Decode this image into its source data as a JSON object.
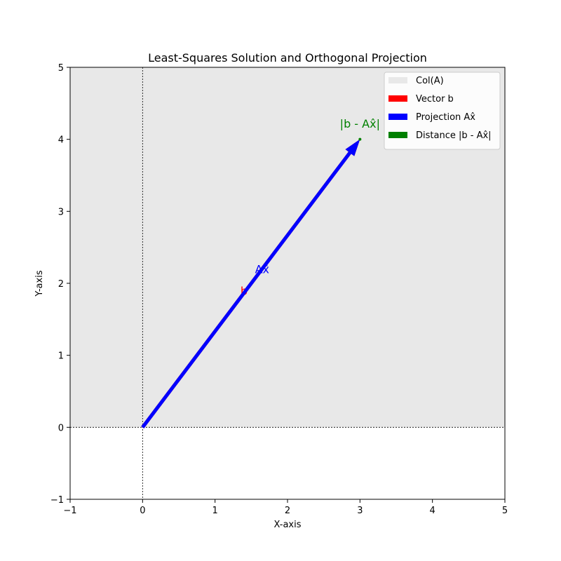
{
  "chart_data": {
    "type": "vector",
    "title": "Least-Squares Solution and Orthogonal Projection",
    "xlabel": "X-axis",
    "ylabel": "Y-axis",
    "xlim": [
      -1,
      5
    ],
    "ylim": [
      -1,
      5
    ],
    "xticks": [
      -1,
      0,
      1,
      2,
      3,
      4,
      5
    ],
    "yticks": [
      -1,
      0,
      1,
      2,
      3,
      4,
      5
    ],
    "xtick_labels": [
      "−1",
      "0",
      "1",
      "2",
      "3",
      "4",
      "5"
    ],
    "ytick_labels": [
      "−1",
      "0",
      "1",
      "2",
      "3",
      "4",
      "5"
    ],
    "reference_lines": {
      "x": 0,
      "y": 0
    },
    "col_a_region": {
      "x": [
        -1,
        5
      ],
      "y": [
        0,
        5
      ],
      "color": "#e8e8e8"
    },
    "vectors": [
      {
        "name": "Vector b",
        "start": [
          0,
          0
        ],
        "end": [
          3,
          4
        ],
        "color": "#ff0000",
        "label": "b",
        "label_pos": [
          1.4,
          1.9
        ]
      },
      {
        "name": "Projection Ax̂",
        "start": [
          0,
          0
        ],
        "end": [
          3,
          4
        ],
        "color": "#0000ff",
        "label": "Ax̂",
        "label_pos": [
          1.65,
          2.2
        ]
      }
    ],
    "distance": {
      "name": "Distance |b - Ax̂|",
      "point": [
        3,
        4
      ],
      "color": "#008000",
      "label": "|b - Ax̂|",
      "label_pos": [
        3.0,
        4.2
      ]
    },
    "legend": {
      "position": "top-right",
      "entries": [
        {
          "label": "Col(A)",
          "color": "#e8e8e8"
        },
        {
          "label": "Vector b",
          "color": "#ff0000"
        },
        {
          "label": "Projection Ax̂",
          "color": "#0000ff"
        },
        {
          "label": "Distance |b - Ax̂|",
          "color": "#008000"
        }
      ]
    }
  }
}
